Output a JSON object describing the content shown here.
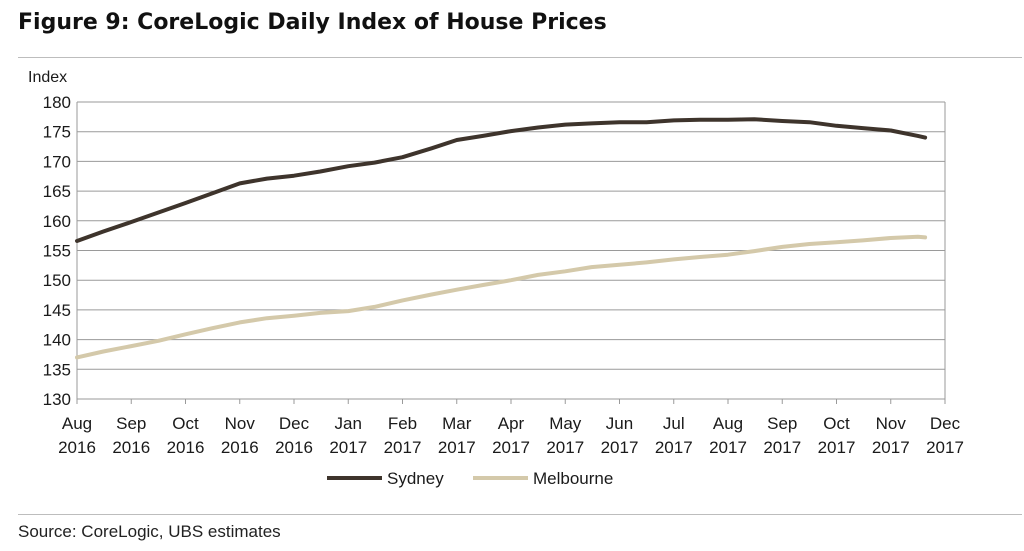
{
  "figure": {
    "title": "Figure 9:  CoreLogic Daily Index of House Prices",
    "source": "Source:  CoreLogic, UBS estimates"
  },
  "colors": {
    "sydney": "#3e342c",
    "melbourne": "#d4c9aa",
    "grid": "#9a9a9a"
  },
  "chart_data": {
    "type": "line",
    "title": "Figure 9:  CoreLogic Daily Index of House Prices",
    "ylabel": "Index",
    "xlabel": "",
    "ylim": [
      130,
      180
    ],
    "y_ticks": [
      130,
      135,
      140,
      145,
      150,
      155,
      160,
      165,
      170,
      175,
      180
    ],
    "grid": true,
    "legend_position": "bottom",
    "x_ticks": [
      {
        "month": "Aug",
        "year": "2016"
      },
      {
        "month": "Sep",
        "year": "2016"
      },
      {
        "month": "Oct",
        "year": "2016"
      },
      {
        "month": "Nov",
        "year": "2016"
      },
      {
        "month": "Dec",
        "year": "2016"
      },
      {
        "month": "Jan",
        "year": "2017"
      },
      {
        "month": "Feb",
        "year": "2017"
      },
      {
        "month": "Mar",
        "year": "2017"
      },
      {
        "month": "Apr",
        "year": "2017"
      },
      {
        "month": "May",
        "year": "2017"
      },
      {
        "month": "Jun",
        "year": "2017"
      },
      {
        "month": "Jul",
        "year": "2017"
      },
      {
        "month": "Aug",
        "year": "2017"
      },
      {
        "month": "Sep",
        "year": "2017"
      },
      {
        "month": "Oct",
        "year": "2017"
      },
      {
        "month": "Nov",
        "year": "2017"
      },
      {
        "month": "Dec",
        "year": "2017"
      }
    ],
    "x": [
      "2016-08-01",
      "2016-08-16",
      "2016-09-01",
      "2016-09-16",
      "2016-10-01",
      "2016-10-16",
      "2016-11-01",
      "2016-11-16",
      "2016-12-01",
      "2016-12-16",
      "2017-01-01",
      "2017-01-16",
      "2017-02-01",
      "2017-02-16",
      "2017-03-01",
      "2017-03-16",
      "2017-04-01",
      "2017-04-16",
      "2017-05-01",
      "2017-05-16",
      "2017-06-01",
      "2017-06-16",
      "2017-07-01",
      "2017-07-16",
      "2017-08-01",
      "2017-08-16",
      "2017-09-01",
      "2017-09-16",
      "2017-10-01",
      "2017-10-16",
      "2017-11-01",
      "2017-11-16",
      "2017-11-20"
    ],
    "series": [
      {
        "name": "Sydney",
        "color": "#3e342c",
        "values": [
          156.6,
          158.2,
          159.8,
          161.4,
          163.0,
          164.6,
          166.3,
          167.1,
          167.6,
          168.3,
          169.2,
          169.8,
          170.7,
          172.2,
          173.6,
          174.3,
          175.1,
          175.7,
          176.2,
          176.4,
          176.6,
          176.6,
          176.9,
          177.0,
          177.0,
          177.1,
          176.8,
          176.6,
          176.0,
          175.6,
          175.2,
          174.3,
          174.0
        ]
      },
      {
        "name": "Melbourne",
        "color": "#d4c9aa",
        "values": [
          137.0,
          138.0,
          138.9,
          139.8,
          140.9,
          141.9,
          142.9,
          143.6,
          144.0,
          144.5,
          144.8,
          145.5,
          146.6,
          147.6,
          148.4,
          149.2,
          150.0,
          150.9,
          151.5,
          152.2,
          152.6,
          153.0,
          153.5,
          153.9,
          154.3,
          154.9,
          155.6,
          156.1,
          156.4,
          156.7,
          157.1,
          157.3,
          157.2
        ]
      }
    ]
  }
}
